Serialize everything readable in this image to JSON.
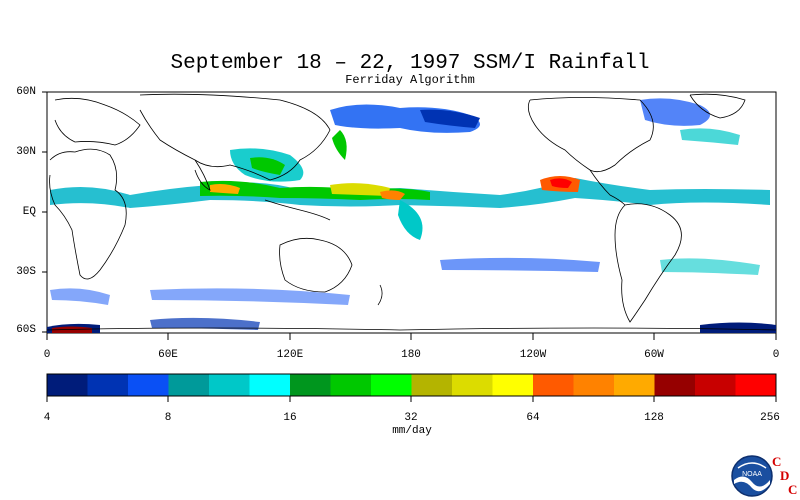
{
  "title": "September 18 – 22, 1997 SSM/I Rainfall",
  "subtitle": "Ferriday Algorithm",
  "lat_labels": [
    "60N",
    "30N",
    "EQ",
    "30S",
    "60S"
  ],
  "lon_labels": [
    "0",
    "60E",
    "120E",
    "180",
    "120W",
    "60W",
    "0"
  ],
  "colorbar": {
    "colors": [
      "#001c7a",
      "#0033b3",
      "#0a50f5",
      "#009a9a",
      "#00c8c8",
      "#00ffff",
      "#00961e",
      "#00c800",
      "#00ff00",
      "#b4b400",
      "#dcdc00",
      "#ffff00",
      "#ff5a00",
      "#ff8200",
      "#ffaa00",
      "#960000",
      "#c80000",
      "#ff0000"
    ],
    "tick_labels": [
      "4",
      "8",
      "16",
      "32",
      "64",
      "128",
      "256"
    ],
    "units": "mm/day"
  },
  "logo": {
    "noaa_text": "NOAA",
    "cdc_letters": [
      "C",
      "D",
      "C"
    ]
  }
}
